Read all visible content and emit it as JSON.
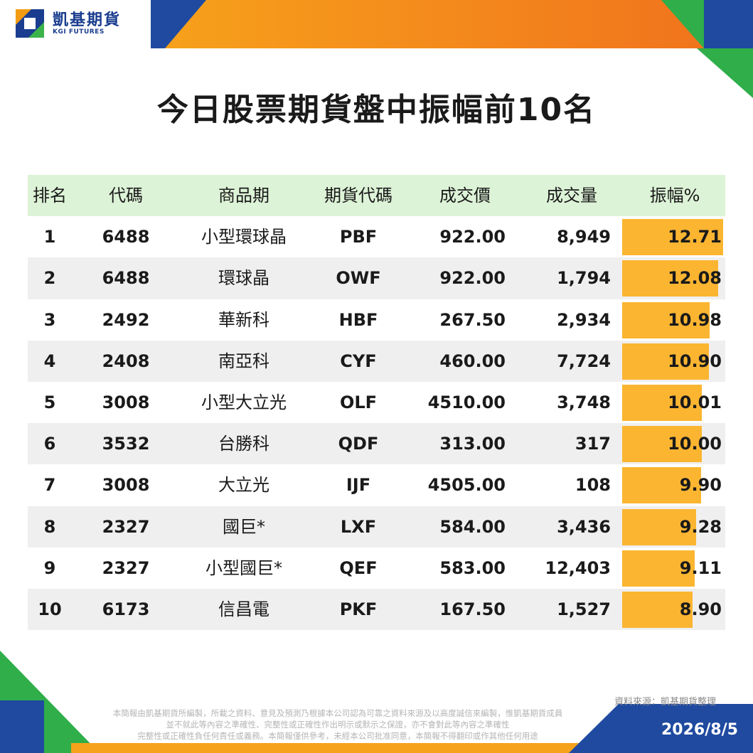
{
  "brand": {
    "name_cn": "凱基期貨",
    "name_en": "KGI FUTURES"
  },
  "title": "今日股票期貨盤中振幅前10名",
  "table": {
    "headers": {
      "rank": "排名",
      "code": "代碼",
      "name": "商品期",
      "futures_code": "期貨代碼",
      "price": "成交價",
      "volume": "成交量",
      "amplitude": "振幅%"
    },
    "rows": [
      {
        "rank": "1",
        "code": "6488",
        "name": "小型環球晶",
        "futures_code": "PBF",
        "price": "922.00",
        "volume": "8,949",
        "amplitude": "12.71",
        "amp_value": 12.71
      },
      {
        "rank": "2",
        "code": "6488",
        "name": "環球晶",
        "futures_code": "OWF",
        "price": "922.00",
        "volume": "1,794",
        "amplitude": "12.08",
        "amp_value": 12.08
      },
      {
        "rank": "3",
        "code": "2492",
        "name": "華新科",
        "futures_code": "HBF",
        "price": "267.50",
        "volume": "2,934",
        "amplitude": "10.98",
        "amp_value": 10.98
      },
      {
        "rank": "4",
        "code": "2408",
        "name": "南亞科",
        "futures_code": "CYF",
        "price": "460.00",
        "volume": "7,724",
        "amplitude": "10.90",
        "amp_value": 10.9
      },
      {
        "rank": "5",
        "code": "3008",
        "name": "小型大立光",
        "futures_code": "OLF",
        "price": "4510.00",
        "volume": "3,748",
        "amplitude": "10.01",
        "amp_value": 10.01
      },
      {
        "rank": "6",
        "code": "3532",
        "name": "台勝科",
        "futures_code": "QDF",
        "price": "313.00",
        "volume": "317",
        "amplitude": "10.00",
        "amp_value": 10.0
      },
      {
        "rank": "7",
        "code": "3008",
        "name": "大立光",
        "futures_code": "IJF",
        "price": "4505.00",
        "volume": "108",
        "amplitude": "9.90",
        "amp_value": 9.9
      },
      {
        "rank": "8",
        "code": "2327",
        "name": "國巨*",
        "futures_code": "LXF",
        "price": "584.00",
        "volume": "3,436",
        "amplitude": "9.28",
        "amp_value": 9.28
      },
      {
        "rank": "9",
        "code": "2327",
        "name": "小型國巨*",
        "futures_code": "QEF",
        "price": "583.00",
        "volume": "12,403",
        "amplitude": "9.11",
        "amp_value": 9.11
      },
      {
        "rank": "10",
        "code": "6173",
        "name": "信昌電",
        "futures_code": "PKF",
        "price": "167.50",
        "volume": "1,527",
        "amplitude": "8.90",
        "amp_value": 8.9
      }
    ]
  },
  "footer": {
    "source": "資料來源：凱基期貨整理",
    "disclaimer_1": "本簡報由凱基期貨所編製，所載之資料、意見及預測乃根據本公司認為可靠之資料來源及以高度誠信來編製，惟凱基期貨成員",
    "disclaimer_2": "並不就此等內容之準確性、完整性或正確性作出明示或默示之保證，亦不會對此等內容之準確性",
    "disclaimer_3": "完整性或正確性負任何責任或義務。本簡報僅供參考，未經本公司批准同意，本簡報不得翻印或作其他任何用途",
    "date": "2026/8/5"
  },
  "colors": {
    "orange": "#f39c12",
    "blue": "#1a3d8f",
    "green": "#3bb34a",
    "bar": "#fbb531",
    "header_row": "#ddf3d7",
    "shade_row": "#efefef"
  }
}
